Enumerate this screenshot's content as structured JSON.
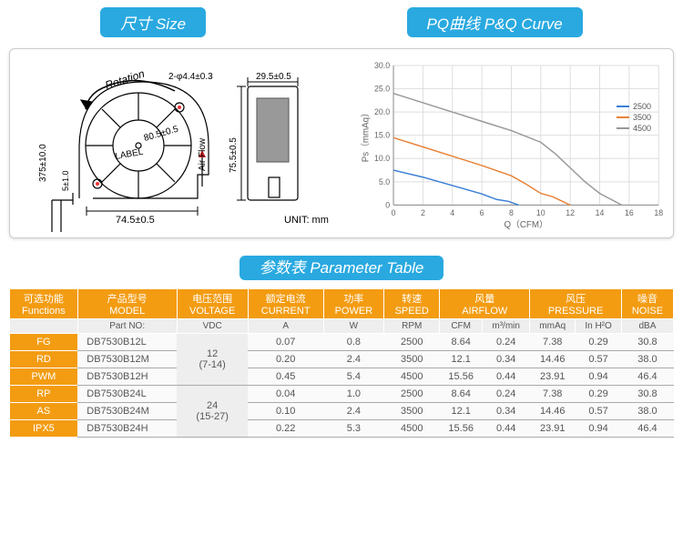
{
  "headers": {
    "size": "尺寸 Size",
    "curve": "PQ曲线 P&Q Curve",
    "table": "参数表 Parameter Table"
  },
  "drawing": {
    "rotation": "Rotation",
    "airflow": "Air Flow",
    "label": "LABEL",
    "unit": "UNIT: mm",
    "dims": {
      "hole": "2-φ4.4±0.3",
      "width2": "29.5±0.5",
      "diameter": "80.5±0.5",
      "width1": "74.5±0.5",
      "height2": "75.5±0.5",
      "wire": "375±10.0",
      "gap": "5±1.0"
    }
  },
  "chart": {
    "ylabel": "Ps（mmAq）",
    "xlabel": "Q（CFM）",
    "ylim": [
      0,
      30
    ],
    "xlim": [
      0,
      18
    ],
    "yticks": [
      0,
      "5.0",
      "10.0",
      "15.0",
      "20.0",
      "25.0",
      "30.0"
    ],
    "xticks": [
      0,
      2,
      4,
      6,
      8,
      10,
      12,
      14,
      16,
      18
    ],
    "series": [
      {
        "name": "2500",
        "color": "#3a7fd5",
        "pts": [
          [
            0,
            7.5
          ],
          [
            2,
            6
          ],
          [
            4,
            4.2
          ],
          [
            6,
            2.4
          ],
          [
            7,
            1.2
          ],
          [
            7.8,
            0.8
          ],
          [
            8.5,
            0
          ]
        ]
      },
      {
        "name": "3500",
        "color": "#e8833a",
        "pts": [
          [
            0,
            14.5
          ],
          [
            2,
            12.5
          ],
          [
            4,
            10.5
          ],
          [
            6,
            8.5
          ],
          [
            8,
            6.3
          ],
          [
            9,
            4.5
          ],
          [
            10,
            2.5
          ],
          [
            10.8,
            1.8
          ],
          [
            12,
            0
          ]
        ]
      },
      {
        "name": "4500",
        "color": "#999999",
        "pts": [
          [
            0,
            24
          ],
          [
            2,
            22
          ],
          [
            4,
            20
          ],
          [
            6,
            18
          ],
          [
            8,
            16
          ],
          [
            10,
            13.5
          ],
          [
            11,
            11
          ],
          [
            12,
            8
          ],
          [
            13,
            5
          ],
          [
            14,
            2.5
          ],
          [
            15.5,
            0
          ]
        ]
      }
    ]
  },
  "table": {
    "head1": [
      {
        "cn": "可选功能",
        "en": "Functions"
      },
      {
        "cn": "产品型号",
        "en": "MODEL"
      },
      {
        "cn": "电压范围",
        "en": "VOLTAGE"
      },
      {
        "cn": "额定电流",
        "en": "CURRENT"
      },
      {
        "cn": "功率",
        "en": "POWER"
      },
      {
        "cn": "转速",
        "en": "SPEED"
      },
      {
        "cn": "风量",
        "en": "AIRFLOW",
        "span": 2
      },
      {
        "cn": "风压",
        "en": "PRESSURE",
        "span": 2
      },
      {
        "cn": "噪音",
        "en": "NOISE"
      }
    ],
    "head2": [
      "Part NO:",
      "VDC",
      "A",
      "W",
      "RPM",
      "CFM",
      "m³/min",
      "mmAq",
      "In H²O",
      "dBA"
    ],
    "functions": [
      "FG",
      "RD",
      "PWM",
      "RP",
      "AS",
      "IPX5"
    ],
    "voltages": [
      {
        "v": "12",
        "r": "(7-14)"
      },
      {
        "v": "24",
        "r": "(15-27)"
      }
    ],
    "rows": [
      [
        "DB7530B12L",
        "0.07",
        "0.8",
        "2500",
        "8.64",
        "0.24",
        "7.38",
        "0.29",
        "30.8"
      ],
      [
        "DB7530B12M",
        "0.20",
        "2.4",
        "3500",
        "12.1",
        "0.34",
        "14.46",
        "0.57",
        "38.0"
      ],
      [
        "DB7530B12H",
        "0.45",
        "5.4",
        "4500",
        "15.56",
        "0.44",
        "23.91",
        "0.94",
        "46.4"
      ],
      [
        "DB7530B24L",
        "0.04",
        "1.0",
        "2500",
        "8.64",
        "0.24",
        "7.38",
        "0.29",
        "30.8"
      ],
      [
        "DB7530B24M",
        "0.10",
        "2.4",
        "3500",
        "12.1",
        "0.34",
        "14.46",
        "0.57",
        "38.0"
      ],
      [
        "DB7530B24H",
        "0.22",
        "5.3",
        "4500",
        "15.56",
        "0.44",
        "23.91",
        "0.94",
        "46.4"
      ]
    ]
  }
}
